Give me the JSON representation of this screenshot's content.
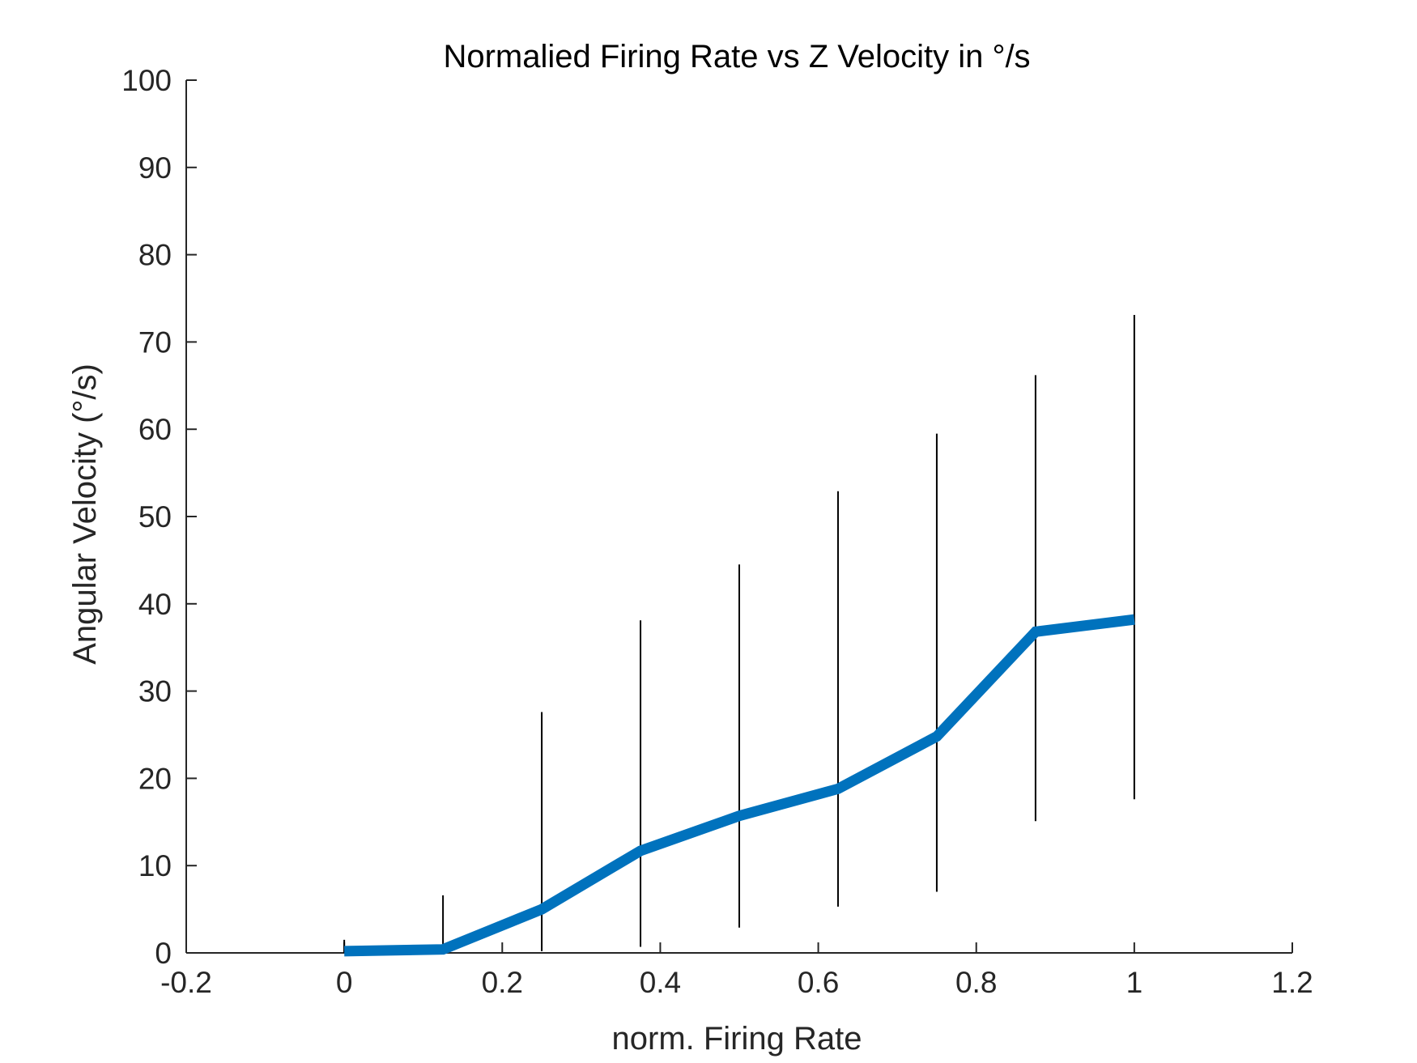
{
  "chart_data": {
    "type": "line",
    "title": "Normalied Firing Rate vs Z Velocity in °/s",
    "xlabel": "norm. Firing Rate",
    "ylabel": "Angular Velocity (°/s)",
    "xlim": [
      -0.2,
      1.2
    ],
    "ylim": [
      0,
      100
    ],
    "xticks": [
      -0.2,
      0,
      0.2,
      0.4,
      0.6,
      0.8,
      1,
      1.2
    ],
    "xtick_labels": [
      "-0.2",
      "0",
      "0.2",
      "0.4",
      "0.6",
      "0.8",
      "1",
      "1.2"
    ],
    "yticks": [
      0,
      10,
      20,
      30,
      40,
      50,
      60,
      70,
      80,
      90,
      100
    ],
    "ytick_labels": [
      "0",
      "10",
      "20",
      "30",
      "40",
      "50",
      "60",
      "70",
      "80",
      "90",
      "100"
    ],
    "grid": false,
    "legend": false,
    "series": [
      {
        "color": "#0072BD",
        "x": [
          0,
          0.125,
          0.25,
          0.375,
          0.5,
          0.625,
          0.75,
          0.875,
          1
        ],
        "y": [
          0.2,
          0.4,
          5.0,
          11.7,
          15.7,
          18.8,
          24.8,
          36.8,
          38.2
        ],
        "error_low": [
          0.0,
          0.0,
          0.2,
          0.7,
          2.9,
          5.3,
          7.0,
          15.1,
          17.6
        ],
        "error_high": [
          1.5,
          6.6,
          27.6,
          38.1,
          44.5,
          52.9,
          59.5,
          66.2,
          73.1
        ]
      }
    ],
    "axis_color": "#262626",
    "errorbar_color": "#000000"
  }
}
